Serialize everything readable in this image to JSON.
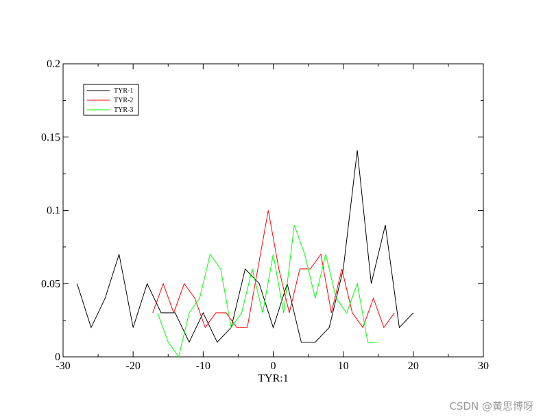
{
  "chart_data": {
    "type": "line",
    "xlabel": "TYR:1",
    "ylabel": "",
    "xlim": [
      -30,
      30
    ],
    "ylim": [
      0,
      0.2
    ],
    "x_ticks": [
      -30,
      -20,
      -10,
      0,
      10,
      20,
      30
    ],
    "x_tick_labels": [
      "-30",
      "-20",
      "-10",
      "0",
      "10",
      "20",
      "30"
    ],
    "y_ticks": [
      0,
      0.05,
      0.1,
      0.15,
      0.2
    ],
    "y_tick_labels": [
      "0",
      "0.05",
      "0.1",
      "0.15",
      "0.2"
    ],
    "grid": false,
    "legend_position": "top-left",
    "series": [
      {
        "name": "TYR-1",
        "color": "#000000",
        "x": [
          -28,
          -26,
          -24,
          -22,
          -20,
          -18,
          -16,
          -14,
          -12,
          -10,
          -8,
          -6,
          -4,
          -2,
          0,
          2,
          4,
          6,
          8,
          10,
          12,
          14,
          16,
          18,
          20
        ],
        "y": [
          0.05,
          0.02,
          0.04,
          0.07,
          0.02,
          0.05,
          0.03,
          0.03,
          0.01,
          0.03,
          0.01,
          0.02,
          0.06,
          0.05,
          0.02,
          0.05,
          0.01,
          0.01,
          0.02,
          0.06,
          0.141,
          0.05,
          0.09,
          0.02,
          0.03
        ]
      },
      {
        "name": "TYR-2",
        "color": "#ff0000",
        "x": [
          -17.2,
          -15.7,
          -14.2,
          -12.7,
          -11.2,
          -9.7,
          -8.2,
          -6.7,
          -5.2,
          -3.7,
          -2.2,
          -0.7,
          0.8,
          2.3,
          3.8,
          5.3,
          6.8,
          8.3,
          9.8,
          11.3,
          12.8,
          14.3,
          15.8,
          17.3
        ],
        "y": [
          0.03,
          0.05,
          0.03,
          0.05,
          0.04,
          0.02,
          0.03,
          0.03,
          0.02,
          0.02,
          0.06,
          0.1,
          0.06,
          0.03,
          0.06,
          0.06,
          0.07,
          0.03,
          0.06,
          0.03,
          0.02,
          0.04,
          0.02,
          0.03
        ]
      },
      {
        "name": "TYR-3",
        "color": "#00ff00",
        "x": [
          -16.5,
          -15,
          -13.5,
          -12,
          -10.5,
          -9,
          -7.5,
          -6,
          -4.5,
          -3,
          -1.5,
          0,
          1.5,
          3,
          4.5,
          6,
          7.5,
          9,
          10.5,
          12,
          13.5,
          15
        ],
        "y": [
          0.03,
          0.01,
          0.0,
          0.03,
          0.04,
          0.07,
          0.06,
          0.02,
          0.03,
          0.06,
          0.03,
          0.07,
          0.03,
          0.09,
          0.07,
          0.04,
          0.07,
          0.04,
          0.03,
          0.05,
          0.01,
          0.01
        ]
      }
    ]
  },
  "watermark": "CSDN @黄思博呀"
}
